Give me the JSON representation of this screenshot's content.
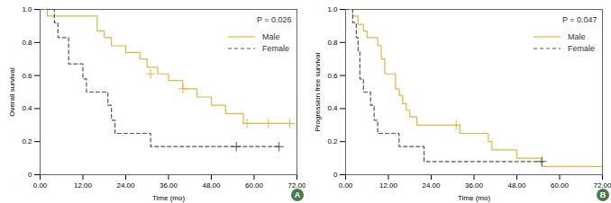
{
  "chart_data": [
    {
      "type": "line",
      "panel_label": "A",
      "annotations": [
        "P = 0.026"
      ],
      "x_label": "Time (mo)",
      "y_label": "Overall survival",
      "legend": "top-right",
      "xlim": [
        0,
        72
      ],
      "ylim": [
        0,
        1
      ],
      "xticks": [
        {
          "value": 0,
          "label": "0.00"
        },
        {
          "value": 12,
          "label": "12.00"
        },
        {
          "value": 24,
          "label": "24.00"
        },
        {
          "value": 36,
          "label": "36.00"
        },
        {
          "value": 48,
          "label": "48.00"
        },
        {
          "value": 60,
          "label": "60.00"
        },
        {
          "value": 72,
          "label": "72.00"
        }
      ],
      "yticks": [
        0,
        0.2,
        0.4,
        0.6,
        0.8,
        {
          "value": 1,
          "label": "1.0"
        }
      ],
      "series": [
        {
          "name": "Male",
          "color": "#e8b440",
          "line_style": "solid",
          "marker": "plus",
          "x": [
            0,
            2,
            16,
            18,
            20,
            24,
            28,
            30,
            33,
            36,
            40,
            44,
            48,
            52,
            57,
            70
          ],
          "values": [
            1.0,
            0.96,
            0.87,
            0.83,
            0.78,
            0.74,
            0.7,
            0.65,
            0.61,
            0.57,
            0.52,
            0.47,
            0.42,
            0.37,
            0.31,
            0.31
          ],
          "censored_x": [
            31,
            40,
            58,
            64,
            70
          ],
          "censored_y": [
            0.61,
            0.52,
            0.31,
            0.31,
            0.31
          ]
        },
        {
          "name": "Female",
          "color": "#555555",
          "line_style": "dashed",
          "marker": "plus",
          "x": [
            0,
            4,
            5,
            8,
            12,
            13,
            19,
            20,
            21,
            31,
            67
          ],
          "values": [
            1.0,
            0.92,
            0.83,
            0.67,
            0.58,
            0.5,
            0.42,
            0.33,
            0.25,
            0.17,
            0.17
          ],
          "censored_x": [
            55,
            67
          ],
          "censored_y": [
            0.17,
            0.17
          ]
        }
      ]
    },
    {
      "type": "line",
      "panel_label": "B",
      "annotations": [
        "P = 0.047"
      ],
      "x_label": "Time (mo)",
      "y_label": "Progression free survival",
      "legend": "top-right",
      "xlim": [
        0,
        72
      ],
      "ylim": [
        0,
        1
      ],
      "xticks": [
        {
          "value": 0,
          "label": "0.00"
        },
        {
          "value": 12,
          "label": "12.00"
        },
        {
          "value": 24,
          "label": "24.00"
        },
        {
          "value": 36,
          "label": "36.00"
        },
        {
          "value": 48,
          "label": "48.00"
        },
        {
          "value": 60,
          "label": "60.00"
        },
        {
          "value": 72,
          "label": "72.00"
        }
      ],
      "yticks": [
        0,
        0.2,
        0.4,
        0.6,
        0.8,
        {
          "value": 1,
          "label": "1.0"
        }
      ],
      "series": [
        {
          "name": "Male",
          "color": "#e8b440",
          "line_style": "solid",
          "marker": "plus",
          "x": [
            0,
            2,
            3.5,
            5,
            6,
            9,
            10,
            11,
            14,
            15,
            16,
            17,
            18,
            20,
            32,
            40,
            41,
            48,
            55,
            72
          ],
          "values": [
            1.0,
            0.96,
            0.91,
            0.87,
            0.83,
            0.78,
            0.7,
            0.61,
            0.52,
            0.48,
            0.43,
            0.39,
            0.35,
            0.3,
            0.25,
            0.2,
            0.15,
            0.1,
            0.05,
            0.05
          ],
          "censored_x": [
            31
          ],
          "censored_y": [
            0.3
          ]
        },
        {
          "name": "Female",
          "color": "#555555",
          "line_style": "dashed",
          "marker": "plus",
          "x": [
            0,
            2,
            3,
            3.5,
            4,
            5,
            7,
            8,
            9,
            15,
            22,
            56
          ],
          "values": [
            1.0,
            0.92,
            0.83,
            0.75,
            0.58,
            0.5,
            0.42,
            0.33,
            0.25,
            0.17,
            0.08,
            0.08
          ],
          "censored_x": [
            55
          ],
          "censored_y": [
            0.08
          ]
        }
      ]
    }
  ]
}
